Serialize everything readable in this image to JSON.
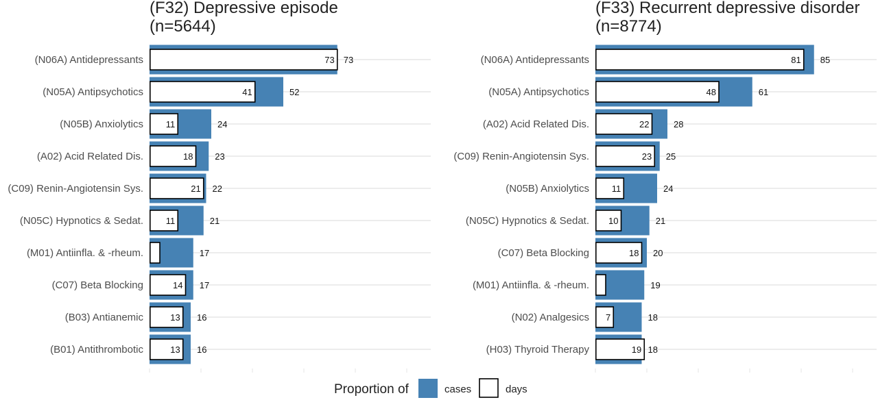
{
  "colors": {
    "cases": "#4682b4",
    "days": "#ffffff",
    "grid": "#e5e5e5"
  },
  "legend": {
    "title": "Proportion of",
    "items": [
      {
        "label": "cases",
        "key": "cases"
      },
      {
        "label": "days",
        "key": "days"
      }
    ]
  },
  "chart_data": [
    {
      "type": "bar",
      "orientation": "horizontal",
      "title": "(F32) Depressive episode",
      "subtitle": "(n=5644)",
      "categories": [
        "(N06A) Antidepressants",
        "(N05A) Antipsychotics",
        "(N05B) Anxiolytics",
        "(A02) Acid Related Dis.",
        "(C09) Renin-Angiotensin Sys.",
        "(N05C) Hypnotics & Sedat.",
        "(M01) Antiinfla. & -rheum.",
        "(C07) Beta Blocking",
        "(B03) Antianemic",
        "(B01) Antithrombotic"
      ],
      "series": [
        {
          "name": "cases",
          "values": [
            73,
            52,
            24,
            23,
            22,
            21,
            17,
            17,
            16,
            16
          ]
        },
        {
          "name": "days",
          "values": [
            73,
            41,
            11,
            18,
            21,
            11,
            4,
            14,
            13,
            13
          ]
        }
      ],
      "labels": {
        "cases": [
          "73",
          "52",
          "24",
          "23",
          "22",
          "21",
          "17",
          "17",
          "16",
          "16"
        ],
        "days": [
          "73",
          "41",
          "11",
          "18",
          "21",
          "11",
          "",
          "14",
          "13",
          "13"
        ]
      },
      "xlim": [
        0,
        110
      ],
      "grid": true
    },
    {
      "type": "bar",
      "orientation": "horizontal",
      "title": "(F33) Recurrent depressive disorder",
      "subtitle": "(n=8774)",
      "categories": [
        "(N06A) Antidepressants",
        "(N05A) Antipsychotics",
        "(A02) Acid Related Dis.",
        "(C09) Renin-Angiotensin Sys.",
        "(N05B) Anxiolytics",
        "(N05C) Hypnotics & Sedat.",
        "(C07) Beta Blocking",
        "(M01) Antiinfla. & -rheum.",
        "(N02) Analgesics",
        "(H03) Thyroid Therapy"
      ],
      "series": [
        {
          "name": "cases",
          "values": [
            85,
            61,
            28,
            25,
            24,
            21,
            20,
            19,
            18,
            18
          ]
        },
        {
          "name": "days",
          "values": [
            81,
            48,
            22,
            23,
            11,
            10,
            18,
            4,
            7,
            19
          ]
        }
      ],
      "labels": {
        "cases": [
          "85",
          "61",
          "28",
          "25",
          "24",
          "21",
          "20",
          "19",
          "18",
          "18"
        ],
        "days": [
          "81",
          "48",
          "22",
          "23",
          "11",
          "10",
          "18",
          "",
          "7",
          "19"
        ]
      },
      "xlim": [
        0,
        110
      ],
      "grid": true
    }
  ]
}
